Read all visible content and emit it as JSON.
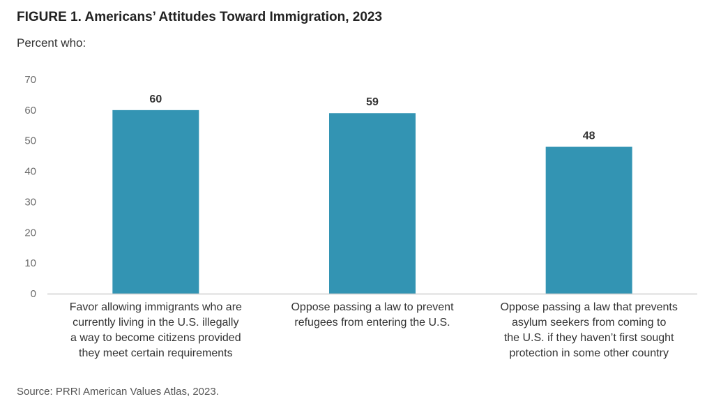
{
  "figure": {
    "title": "FIGURE 1. Americans’ Attitudes Toward Immigration, 2023",
    "subtitle": "Percent who:",
    "source": "Source: PRRI American Values Atlas, 2023."
  },
  "colors": {
    "bar": "#3394b3",
    "axis": "#cfcfcf",
    "text": "#333333",
    "tick": "#6b6b6b"
  },
  "chart_data": {
    "type": "bar",
    "title": "FIGURE 1. Americans’ Attitudes Toward Immigration, 2023",
    "subtitle": "Percent who:",
    "categories": [
      "Favor allowing immigrants who are currently living in the U.S. illegally a way to become citizens provided they meet certain requirements",
      "Oppose passing a law to prevent refugees from entering the U.S.",
      "Oppose passing a law that prevents asylum seekers from coming to the U.S. if they haven’t first sought protection in some other country"
    ],
    "category_lines": [
      [
        "Favor allowing immigrants who are",
        "currently living in the U.S. illegally",
        "a way to become citizens provided",
        "they meet certain requirements"
      ],
      [
        "Oppose passing a law to prevent",
        "refugees from entering the U.S."
      ],
      [
        "Oppose passing a law that prevents",
        "asylum seekers from coming to",
        "the U.S. if they haven’t first sought",
        "protection in some other country"
      ]
    ],
    "values": [
      60,
      59,
      48
    ],
    "value_labels": [
      "60",
      "59",
      "48"
    ],
    "ylim": [
      0,
      70
    ],
    "yticks": [
      0,
      10,
      20,
      30,
      40,
      50,
      60,
      70
    ],
    "xlabel": "",
    "ylabel": "",
    "grid": false,
    "legend": "none"
  }
}
